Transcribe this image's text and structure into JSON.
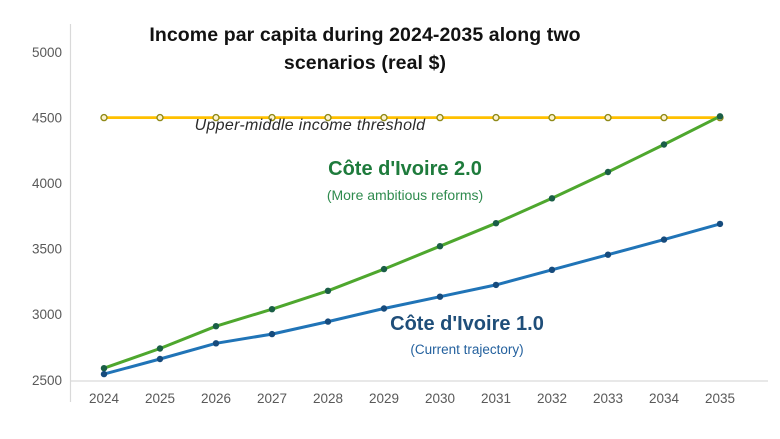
{
  "title": {
    "line1": "Income par capita during 2024-2035 along two",
    "line2": "scenarios (real $)"
  },
  "annotations": {
    "threshold_label": "Upper-middle income threshold",
    "civ2_title": "Côte d'Ivoire 2.0",
    "civ2_subtitle": "(More ambitious reforms)",
    "civ1_title": "Côte d'Ivoire 1.0",
    "civ1_subtitle": "(Current trajectory)"
  },
  "colors": {
    "background": "#ffffff",
    "title_text": "#121212",
    "axis_line": "#D9D9D9",
    "tick_text": "#595959",
    "threshold_line": "#FFC000",
    "threshold_marker_stroke": "#8F8A1A",
    "threshold_marker_fill": "#FDF3CF",
    "civ2_line": "#4EA72E",
    "civ2_marker": "#1A5E46",
    "civ2_label": "#1E7B3C",
    "civ1_line": "#2074B7",
    "civ1_marker": "#164B7D",
    "civ1_label": "#1F4E79"
  },
  "chart_data": {
    "type": "line",
    "title": "Income par capita during 2024-2035 along two scenarios (real $)",
    "x": [
      2024,
      2025,
      2026,
      2027,
      2028,
      2029,
      2030,
      2031,
      2032,
      2033,
      2034,
      2035
    ],
    "series": [
      {
        "name": "Upper-middle income threshold",
        "values": [
          4500,
          4500,
          4500,
          4500,
          4500,
          4500,
          4500,
          4500,
          4500,
          4500,
          4500,
          4500
        ],
        "line_color": "#FFC000",
        "marker": "hollow-circle",
        "marker_color": "#8F8A1A",
        "marker_fill": "#FDF3CF"
      },
      {
        "name": "Côte d'Ivoire 2.0 (More ambitious reforms)",
        "values": [
          2590,
          2740,
          2910,
          3040,
          3180,
          3345,
          3520,
          3695,
          3885,
          4085,
          4295,
          4510
        ],
        "line_color": "#4EA72E",
        "marker": "filled-circle",
        "marker_color": "#1A5E46"
      },
      {
        "name": "Côte d'Ivoire 1.0 (Current trajectory)",
        "values": [
          2545,
          2660,
          2780,
          2850,
          2945,
          3045,
          3135,
          3225,
          3340,
          3455,
          3570,
          3690
        ],
        "line_color": "#2074B7",
        "marker": "filled-circle",
        "marker_color": "#164B7D"
      }
    ],
    "ylim": [
      2500,
      5000
    ],
    "y_ticks": [
      2500,
      3000,
      3500,
      4000,
      4500,
      5000
    ],
    "xlabel": "",
    "ylabel": "",
    "grid": false,
    "legend": "inline-annotations"
  }
}
